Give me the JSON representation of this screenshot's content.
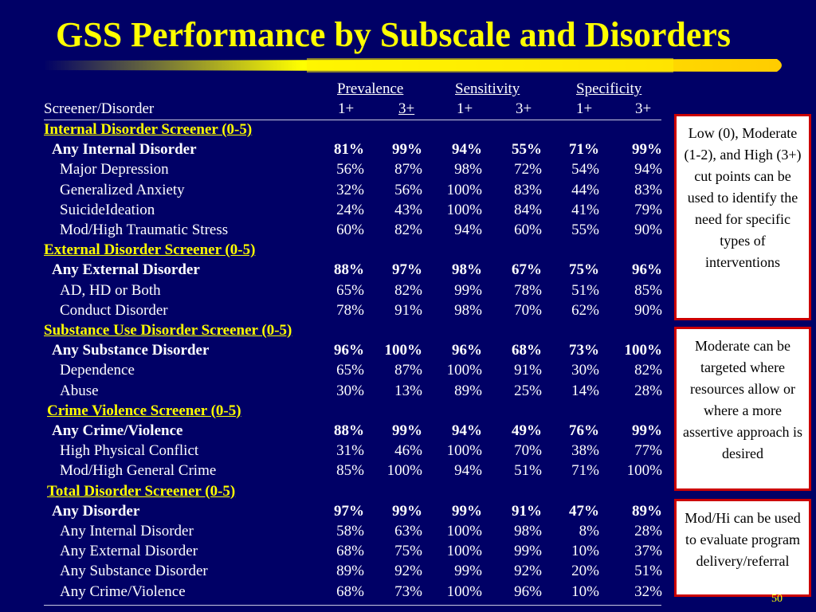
{
  "title": "GSS Performance by Subscale and Disorders",
  "header": {
    "screener_label": "Screener/Disorder",
    "groups": [
      "Prevalence",
      "Sensitivity",
      "Specificity"
    ],
    "subcols": [
      "1+",
      "3+",
      "1+",
      "3+",
      "1+",
      "3+"
    ]
  },
  "rows": [
    {
      "type": "section",
      "label": "Internal Disorder Screener (0-5)"
    },
    {
      "type": "bold",
      "label": "Any Internal Disorder",
      "values": [
        "81%",
        "99%",
        "94%",
        "55%",
        "71%",
        "99%"
      ]
    },
    {
      "type": "item",
      "label": "Major Depression",
      "values": [
        "56%",
        "87%",
        "98%",
        "72%",
        "54%",
        "94%"
      ]
    },
    {
      "type": "item",
      "label": "Generalized Anxiety",
      "values": [
        "32%",
        "56%",
        "100%",
        "83%",
        "44%",
        "83%"
      ]
    },
    {
      "type": "item",
      "label": "SuicideIdeation",
      "values": [
        "24%",
        "43%",
        "100%",
        "84%",
        "41%",
        "79%"
      ]
    },
    {
      "type": "item",
      "label": "Mod/High Traumatic Stress",
      "values": [
        "60%",
        "82%",
        "94%",
        "60%",
        "55%",
        "90%"
      ]
    },
    {
      "type": "section",
      "label": "External Disorder Screener (0-5)"
    },
    {
      "type": "bold",
      "label": "Any External Disorder",
      "values": [
        "88%",
        "97%",
        "98%",
        "67%",
        "75%",
        "96%"
      ]
    },
    {
      "type": "item",
      "label": "AD, HD or Both",
      "values": [
        "65%",
        "82%",
        "99%",
        "78%",
        "51%",
        "85%"
      ]
    },
    {
      "type": "item",
      "label": "Conduct Disorder",
      "values": [
        "78%",
        "91%",
        "98%",
        "70%",
        "62%",
        "90%"
      ]
    },
    {
      "type": "section",
      "label": "Substance Use Disorder Screener (0-5)"
    },
    {
      "type": "bold",
      "label": "Any Substance Disorder",
      "values": [
        "96%",
        "100%",
        "96%",
        "68%",
        "73%",
        "100%"
      ]
    },
    {
      "type": "item",
      "label": "Dependence",
      "values": [
        "65%",
        "87%",
        "100%",
        "91%",
        "30%",
        "82%"
      ]
    },
    {
      "type": "item",
      "label": "Abuse",
      "values": [
        "30%",
        "13%",
        "89%",
        "25%",
        "14%",
        "28%"
      ]
    },
    {
      "type": "section",
      "label": "Crime Violence Screener (0-5)"
    },
    {
      "type": "bold",
      "label": "Any Crime/Violence",
      "values": [
        "88%",
        "99%",
        "94%",
        "49%",
        "76%",
        "99%"
      ]
    },
    {
      "type": "item",
      "label": "High Physical Conflict",
      "values": [
        "31%",
        "46%",
        "100%",
        "70%",
        "38%",
        "77%"
      ]
    },
    {
      "type": "item",
      "label": "Mod/High General Crime",
      "values": [
        "85%",
        "100%",
        "94%",
        "51%",
        "71%",
        "100%"
      ]
    },
    {
      "type": "section",
      "label": "Total Disorder Screener (0-5)"
    },
    {
      "type": "bold",
      "label": "Any Disorder",
      "values": [
        "97%",
        "99%",
        "99%",
        "91%",
        "47%",
        "89%"
      ]
    },
    {
      "type": "item",
      "label": "Any Internal Disorder",
      "values": [
        "58%",
        "63%",
        "100%",
        "98%",
        "8%",
        "28%"
      ]
    },
    {
      "type": "item",
      "label": "Any External Disorder",
      "values": [
        "68%",
        "75%",
        "100%",
        "99%",
        "10%",
        "37%"
      ]
    },
    {
      "type": "item",
      "label": "Any Substance Disorder",
      "values": [
        "89%",
        "92%",
        "99%",
        "92%",
        "20%",
        "51%"
      ]
    },
    {
      "type": "item",
      "label": "Any Crime/Violence",
      "values": [
        "68%",
        "73%",
        "100%",
        "96%",
        "10%",
        "32%"
      ]
    }
  ],
  "notes": [
    "Low (0), Moderate (1-2), and High (3+) cut points can be used to identify the need for specific types of interventions",
    "Moderate can be targeted where resources allow or where a more assertive approach is desired",
    "Mod/Hi can be used to evaluate program delivery/referral"
  ],
  "page_number": "50",
  "colors": {
    "background": "#000066",
    "title": "#ffff00",
    "text": "#ffffff",
    "note_border": "#cc0000"
  }
}
